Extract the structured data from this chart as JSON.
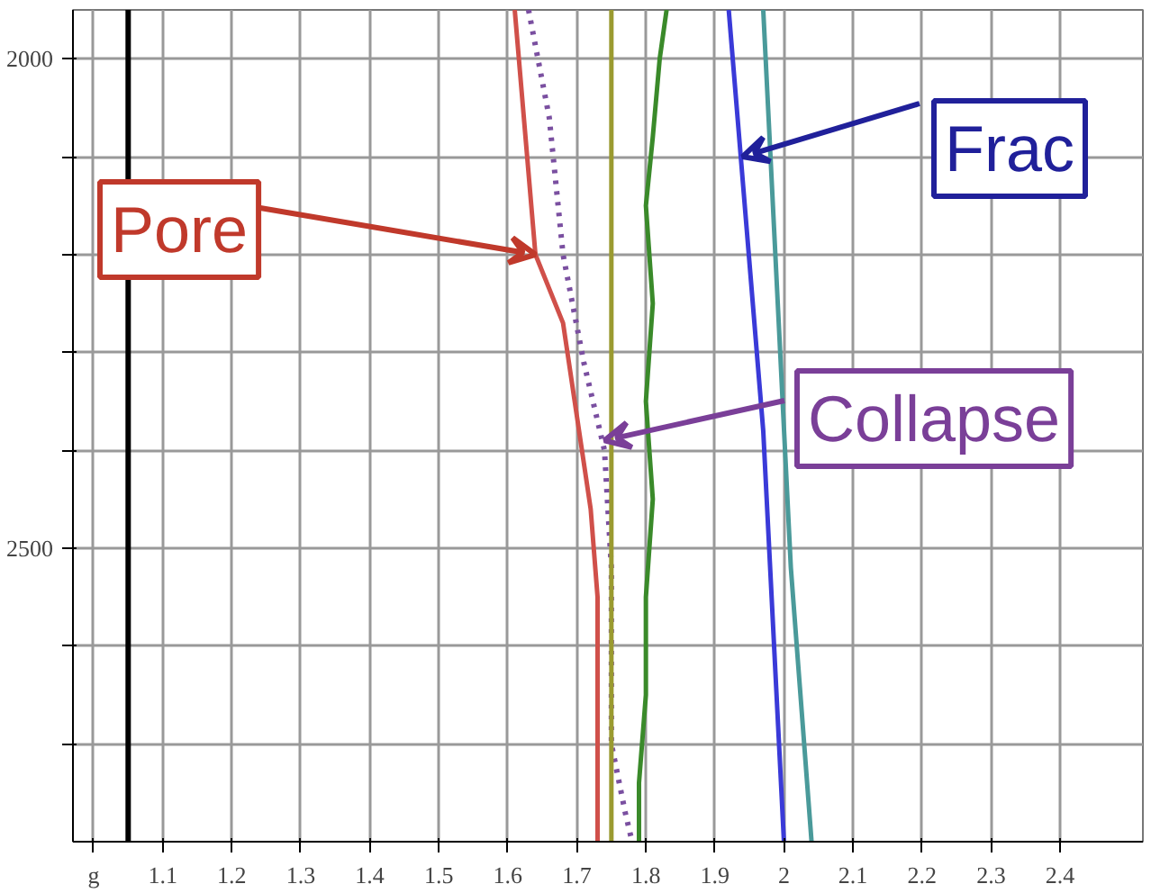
{
  "chart_data": {
    "type": "line",
    "xlim": [
      0.97,
      2.52
    ],
    "ylim": [
      2800,
      1950
    ],
    "xticks": [
      {
        "value": 1.0,
        "label": "g"
      },
      1.1,
      1.2,
      1.3,
      1.4,
      1.5,
      1.6,
      1.7,
      1.8,
      1.9,
      2,
      2.1,
      2.2,
      2.3,
      2.4
    ],
    "yticks": [
      2000,
      {
        "value": 2100,
        "label": null
      },
      {
        "value": 2200,
        "label": null
      },
      {
        "value": 2300,
        "label": null
      },
      {
        "value": 2400,
        "label": null
      },
      2500,
      {
        "value": 2600,
        "label": null
      },
      {
        "value": 2700,
        "label": null
      }
    ],
    "grid": true,
    "marker": "none",
    "line_style": "solid",
    "series": [
      {
        "color": "#d0504a",
        "x": [
          1.61,
          1.64,
          1.68,
          1.72,
          1.73,
          1.73
        ],
        "values": [
          1950,
          2200,
          2270,
          2460,
          2550,
          2800
        ]
      },
      {
        "color": "#7a4fa0",
        "line_style": "dotted",
        "x": [
          1.63,
          1.66,
          1.68,
          1.71,
          1.74,
          1.75,
          1.75,
          1.77,
          1.78
        ],
        "values": [
          1950,
          2060,
          2200,
          2310,
          2400,
          2520,
          2700,
          2770,
          2800
        ]
      },
      {
        "color": "#9a9a30",
        "x": [
          1.75,
          1.75
        ],
        "values": [
          1950,
          2800
        ]
      },
      {
        "color": "#3a8a2a",
        "x": [
          1.83,
          1.82,
          1.81,
          1.8,
          1.81,
          1.8,
          1.81,
          1.8,
          1.8,
          1.79,
          1.79
        ],
        "values": [
          1950,
          2000,
          2080,
          2150,
          2250,
          2350,
          2450,
          2550,
          2650,
          2740,
          2800
        ]
      },
      {
        "color": "#3a3ad8",
        "x": [
          1.92,
          1.97,
          2.0
        ],
        "values": [
          1950,
          2380,
          2800
        ]
      },
      {
        "color": "#4a9a9a",
        "x": [
          1.97,
          2.01,
          2.04
        ],
        "values": [
          1950,
          2520,
          2800
        ]
      }
    ],
    "ref_lines": [
      {
        "axis": "x",
        "value": 1.05,
        "color": "#000000"
      }
    ],
    "annotations": [
      {
        "text": "Pore",
        "x": 1.64,
        "y": 2200
      },
      {
        "text": "Frac",
        "x": 1.94,
        "y": 2100
      },
      {
        "text": "Collapse",
        "x": 1.74,
        "y": 2390
      }
    ]
  }
}
